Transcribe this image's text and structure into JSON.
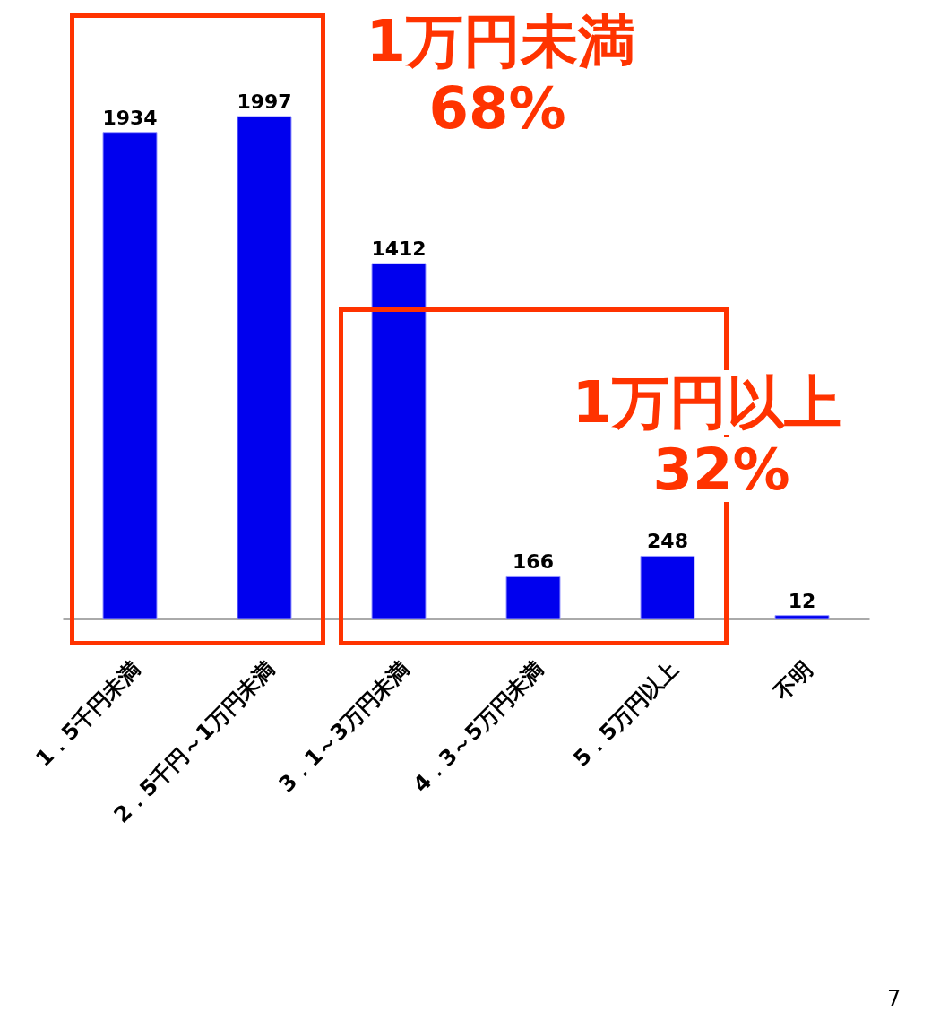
{
  "chart_data": {
    "type": "bar",
    "categories": [
      "1．5千円未満",
      "2．5千円～1万円未満",
      "3．1～3万円未満",
      "4．3～5万円未満",
      "5．5万円以上",
      "不明"
    ],
    "values": [
      1934,
      1997,
      1412,
      166,
      248,
      12
    ],
    "color": "#0000ee",
    "data_labels": true,
    "annotations": [
      "1万円未満",
      "68%",
      "1万円以上",
      "32%",
      "7"
    ]
  }
}
